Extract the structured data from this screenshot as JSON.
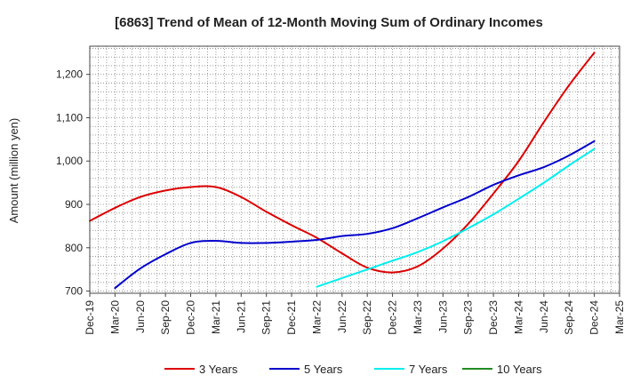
{
  "chart_data": {
    "type": "line",
    "title": "[6863]  Trend of Mean of 12-Month Moving Sum of Ordinary Incomes",
    "xlabel": "",
    "ylabel": "Amount (million yen)",
    "ylim": [
      695,
      1265
    ],
    "y_ticks": [
      700,
      800,
      900,
      "1,000",
      "1,100",
      "1,200"
    ],
    "y_tick_values": [
      700,
      800,
      900,
      1000,
      1100,
      1200
    ],
    "categories": [
      "Dec-19",
      "Mar-20",
      "Jun-20",
      "Sep-20",
      "Dec-20",
      "Mar-21",
      "Jun-21",
      "Sep-21",
      "Dec-21",
      "Mar-22",
      "Jun-22",
      "Sep-22",
      "Dec-22",
      "Mar-23",
      "Jun-23",
      "Sep-23",
      "Dec-23",
      "Mar-24",
      "Jun-24",
      "Sep-24",
      "Dec-24",
      "Mar-25"
    ],
    "grid": true,
    "legend_position": "bottom",
    "series": [
      {
        "name": "3 Years",
        "color": "#dd0000",
        "values": [
          862,
          892,
          917,
          932,
          940,
          940,
          917,
          883,
          852,
          823,
          787,
          754,
          743,
          757,
          798,
          855,
          925,
          1000,
          1090,
          1175,
          1250,
          null
        ]
      },
      {
        "name": "5 Years",
        "color": "#0000cc",
        "values": [
          null,
          707,
          752,
          785,
          811,
          816,
          811,
          811,
          814,
          818,
          827,
          832,
          845,
          868,
          893,
          917,
          945,
          967,
          986,
          1013,
          1046,
          null
        ]
      },
      {
        "name": "7 Years",
        "color": "#00eeee",
        "values": [
          null,
          null,
          null,
          null,
          null,
          null,
          null,
          null,
          null,
          710,
          730,
          750,
          770,
          790,
          815,
          845,
          877,
          913,
          950,
          990,
          1028,
          null
        ]
      },
      {
        "name": "10 Years",
        "color": "#228b22",
        "values": [
          null,
          null,
          null,
          null,
          null,
          null,
          null,
          null,
          null,
          null,
          null,
          null,
          null,
          null,
          null,
          null,
          null,
          null,
          null,
          null,
          null,
          null
        ]
      }
    ]
  }
}
